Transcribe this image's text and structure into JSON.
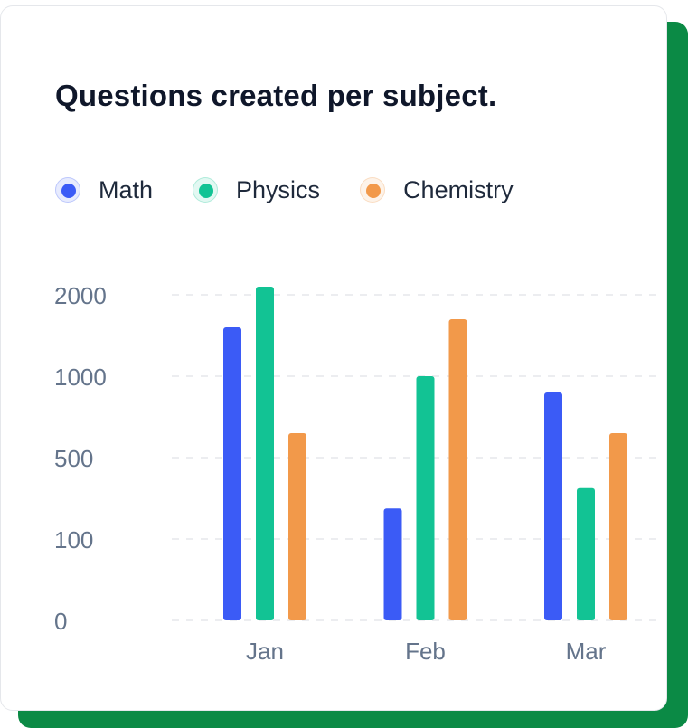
{
  "card": {
    "title": "Questions created per subject."
  },
  "chart_data": {
    "type": "bar",
    "title": "Questions created per subject.",
    "xlabel": "",
    "ylabel": "",
    "categories": [
      "Jan",
      "Feb",
      "Mar"
    ],
    "y_ticks": [
      "0",
      "100",
      "500",
      "1000",
      "2000"
    ],
    "y_scale": "non-linear (ticks equally spaced: 0, 100, 500, 1000, 2000)",
    "grid": true,
    "legend_position": "top-left",
    "series": [
      {
        "name": "Math",
        "color": "#3b5bf6",
        "values": [
          1600,
          250,
          900
        ]
      },
      {
        "name": "Physics",
        "color": "#12c394",
        "values": [
          2100,
          1000,
          350
        ]
      },
      {
        "name": "Chemistry",
        "color": "#f2994a",
        "values": [
          650,
          1700,
          650
        ]
      }
    ]
  }
}
